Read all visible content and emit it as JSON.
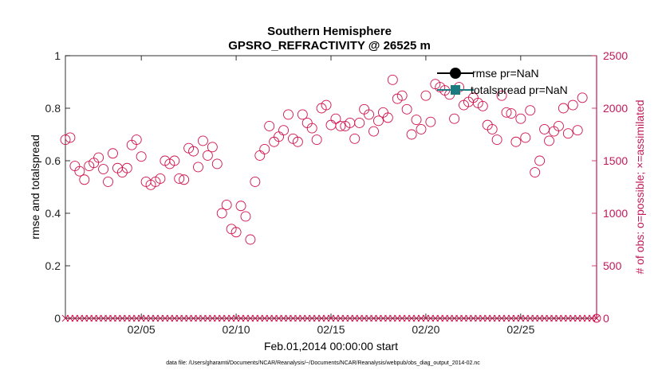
{
  "chart_data": {
    "type": "scatter",
    "title": "Southern Hemisphere",
    "subtitle": "GPSRO_REFRACTIVITY @ 26525 m",
    "ylabel": "rmse and totalspread",
    "ylabel_right": "# of obs: o=possible; ×=assimilated",
    "xlabel": "Feb.01,2014 00:00:00 start",
    "footer": "data file: /Users/gharamti/Documents/NCAR/Reanalysis/~/Documents/NCAR/Reanalysis/webpub/obs_diag_output_2014-02.nc",
    "ylim": [
      0,
      1
    ],
    "ylim_right": [
      0,
      2500
    ],
    "xlim": [
      1,
      29
    ],
    "yticks": [
      "0",
      "0.2",
      "0.4",
      "0.6",
      "0.8",
      "1"
    ],
    "yticks_right": [
      "0",
      "500",
      "1000",
      "1500",
      "2000",
      "2500"
    ],
    "xticks": [
      {
        "value": 5,
        "label": "02/05"
      },
      {
        "value": 10,
        "label": "02/10"
      },
      {
        "value": 15,
        "label": "02/15"
      },
      {
        "value": 20,
        "label": "02/20"
      },
      {
        "value": 25,
        "label": "02/25"
      }
    ],
    "legend": [
      {
        "label": "rmse pr=NaN",
        "color": "#000000",
        "marker": "circle"
      },
      {
        "label": "totalspread pr=NaN",
        "color": "#1a7a80",
        "marker": "square"
      }
    ],
    "legend_position": "top-right",
    "colors": {
      "obs": "#d0104c",
      "right_axis": "#c2185b",
      "rmse": "#000000",
      "spread": "#1a7a80"
    },
    "series": [
      {
        "name": "possible",
        "marker": "circle",
        "axis": "right",
        "points": [
          [
            1.0,
            1700
          ],
          [
            1.25,
            1720
          ],
          [
            1.5,
            1450
          ],
          [
            1.75,
            1400
          ],
          [
            2.0,
            1320
          ],
          [
            2.25,
            1450
          ],
          [
            2.5,
            1480
          ],
          [
            2.75,
            1530
          ],
          [
            3.0,
            1420
          ],
          [
            3.25,
            1300
          ],
          [
            3.5,
            1570
          ],
          [
            3.75,
            1430
          ],
          [
            4.0,
            1390
          ],
          [
            4.25,
            1430
          ],
          [
            4.5,
            1650
          ],
          [
            4.75,
            1700
          ],
          [
            5.0,
            1540
          ],
          [
            5.25,
            1300
          ],
          [
            5.5,
            1270
          ],
          [
            5.75,
            1300
          ],
          [
            6.0,
            1330
          ],
          [
            6.25,
            1500
          ],
          [
            6.5,
            1470
          ],
          [
            6.75,
            1500
          ],
          [
            7.0,
            1330
          ],
          [
            7.25,
            1320
          ],
          [
            7.5,
            1620
          ],
          [
            7.75,
            1590
          ],
          [
            8.0,
            1440
          ],
          [
            8.25,
            1690
          ],
          [
            8.5,
            1550
          ],
          [
            8.75,
            1630
          ],
          [
            9.0,
            1470
          ],
          [
            9.25,
            1000
          ],
          [
            9.5,
            1080
          ],
          [
            9.75,
            850
          ],
          [
            10.0,
            820
          ],
          [
            10.25,
            1070
          ],
          [
            10.5,
            970
          ],
          [
            10.75,
            750
          ],
          [
            11.0,
            1300
          ],
          [
            11.25,
            1550
          ],
          [
            11.5,
            1610
          ],
          [
            11.75,
            1830
          ],
          [
            12.0,
            1680
          ],
          [
            12.25,
            1730
          ],
          [
            12.5,
            1790
          ],
          [
            12.75,
            1940
          ],
          [
            13.0,
            1710
          ],
          [
            13.25,
            1680
          ],
          [
            13.5,
            1940
          ],
          [
            13.75,
            1860
          ],
          [
            14.0,
            1810
          ],
          [
            14.25,
            1700
          ],
          [
            14.5,
            2000
          ],
          [
            14.75,
            2030
          ],
          [
            15.0,
            1840
          ],
          [
            15.25,
            1900
          ],
          [
            15.5,
            1830
          ],
          [
            15.75,
            1830
          ],
          [
            16.0,
            1860
          ],
          [
            16.25,
            1710
          ],
          [
            16.5,
            1860
          ],
          [
            16.75,
            1990
          ],
          [
            17.0,
            1940
          ],
          [
            17.25,
            1780
          ],
          [
            17.5,
            1880
          ],
          [
            17.75,
            1960
          ],
          [
            18.0,
            1910
          ],
          [
            18.25,
            2270
          ],
          [
            18.5,
            2090
          ],
          [
            18.75,
            2120
          ],
          [
            19.0,
            1990
          ],
          [
            19.25,
            1750
          ],
          [
            19.5,
            1890
          ],
          [
            19.75,
            1800
          ],
          [
            20.0,
            2120
          ],
          [
            20.25,
            1870
          ],
          [
            20.5,
            2230
          ],
          [
            20.75,
            2200
          ],
          [
            21.0,
            2170
          ],
          [
            21.25,
            2130
          ],
          [
            21.5,
            1900
          ],
          [
            21.75,
            2200
          ],
          [
            22.0,
            2030
          ],
          [
            22.25,
            2060
          ],
          [
            22.5,
            2100
          ],
          [
            22.75,
            2050
          ],
          [
            23.0,
            2020
          ],
          [
            23.25,
            1840
          ],
          [
            23.5,
            1800
          ],
          [
            23.75,
            1700
          ],
          [
            24.0,
            2120
          ],
          [
            24.25,
            1960
          ],
          [
            24.5,
            1950
          ],
          [
            24.75,
            1680
          ],
          [
            25.0,
            1900
          ],
          [
            25.25,
            1720
          ],
          [
            25.5,
            1980
          ],
          [
            25.75,
            1390
          ],
          [
            26.0,
            1500
          ],
          [
            26.25,
            1800
          ],
          [
            26.5,
            1690
          ],
          [
            26.75,
            1780
          ],
          [
            27.0,
            1830
          ],
          [
            27.25,
            2000
          ],
          [
            27.5,
            1760
          ],
          [
            27.75,
            2030
          ],
          [
            28.0,
            1790
          ],
          [
            28.25,
            2100
          ]
        ]
      },
      {
        "name": "assimilated",
        "marker": "x",
        "axis": "right",
        "value": 0
      },
      {
        "name": "rmse",
        "values": [],
        "note": "pr=NaN"
      },
      {
        "name": "totalspread",
        "values": [],
        "note": "pr=NaN"
      }
    ]
  }
}
